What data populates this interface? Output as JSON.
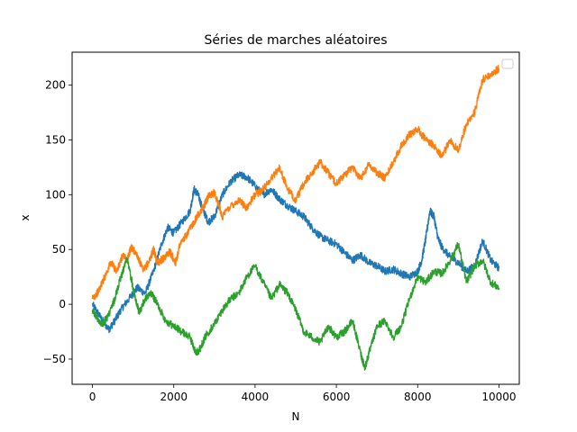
{
  "chart_data": {
    "type": "line",
    "title": "Séries de marches aléatoires",
    "xlabel": "N",
    "ylabel": "x",
    "xlim": [
      -500,
      10500
    ],
    "ylim": [
      -73,
      230
    ],
    "x_ticks": [
      0,
      2000,
      4000,
      6000,
      8000,
      10000
    ],
    "x_tick_labels": [
      "0",
      "2000",
      "4000",
      "6000",
      "8000",
      "10000"
    ],
    "y_ticks": [
      -50,
      0,
      50,
      100,
      150,
      200
    ],
    "y_tick_labels": [
      "−50",
      "0",
      "50",
      "100",
      "150",
      "200"
    ],
    "grid": false,
    "legend": {
      "placement": "top-right",
      "entries": []
    },
    "series": [
      {
        "color": "#1f77b4",
        "x": [
          0,
          200,
          400,
          550,
          700,
          900,
          1100,
          1300,
          1500,
          1700,
          1850,
          2000,
          2200,
          2400,
          2500,
          2600,
          2700,
          2850,
          3000,
          3200,
          3400,
          3600,
          3800,
          4000,
          4200,
          4400,
          4600,
          4800,
          5000,
          5200,
          5400,
          5600,
          5800,
          6000,
          6200,
          6400,
          6600,
          6800,
          7000,
          7200,
          7400,
          7600,
          7800,
          8000,
          8100,
          8200,
          8300,
          8400,
          8500,
          8600,
          8800,
          9000,
          9200,
          9400,
          9600,
          9800,
          10000
        ],
        "y": [
          0,
          -12,
          -23,
          -15,
          -5,
          5,
          15,
          10,
          30,
          55,
          70,
          65,
          75,
          85,
          105,
          100,
          88,
          75,
          80,
          100,
          112,
          118,
          116,
          108,
          100,
          105,
          96,
          90,
          85,
          80,
          70,
          62,
          58,
          55,
          47,
          40,
          45,
          38,
          35,
          30,
          32,
          28,
          25,
          30,
          40,
          60,
          85,
          80,
          60,
          52,
          43,
          38,
          30,
          35,
          58,
          40,
          33
        ]
      },
      {
        "color": "#ff7f0e",
        "x": [
          0,
          150,
          300,
          450,
          600,
          750,
          850,
          950,
          1100,
          1250,
          1400,
          1500,
          1600,
          1750,
          1900,
          2050,
          2150,
          2300,
          2450,
          2600,
          2750,
          2850,
          3000,
          3200,
          3400,
          3600,
          3800,
          4000,
          4200,
          4400,
          4600,
          4800,
          5000,
          5200,
          5400,
          5600,
          5800,
          6000,
          6200,
          6400,
          6600,
          6800,
          7000,
          7200,
          7400,
          7600,
          7800,
          8000,
          8200,
          8400,
          8600,
          8800,
          9000,
          9200,
          9400,
          9600,
          9800,
          10000
        ],
        "y": [
          5,
          12,
          25,
          38,
          30,
          45,
          40,
          52,
          45,
          30,
          40,
          50,
          38,
          42,
          48,
          38,
          55,
          62,
          72,
          82,
          90,
          98,
          102,
          80,
          90,
          95,
          88,
          100,
          105,
          115,
          125,
          105,
          95,
          110,
          120,
          130,
          120,
          110,
          118,
          125,
          115,
          128,
          120,
          115,
          130,
          145,
          155,
          160,
          150,
          145,
          135,
          150,
          140,
          165,
          175,
          205,
          210,
          215
        ]
      },
      {
        "color": "#2ca02c",
        "x": [
          0,
          100,
          250,
          400,
          550,
          700,
          850,
          1000,
          1150,
          1300,
          1450,
          1600,
          1800,
          2000,
          2200,
          2400,
          2550,
          2650,
          2800,
          3000,
          3200,
          3400,
          3600,
          3800,
          4000,
          4200,
          4400,
          4600,
          4800,
          5000,
          5200,
          5400,
          5600,
          5800,
          6000,
          6200,
          6400,
          6600,
          6700,
          6800,
          7000,
          7200,
          7400,
          7600,
          7800,
          8000,
          8200,
          8400,
          8600,
          8800,
          9000,
          9200,
          9400,
          9600,
          9800,
          10000
        ],
        "y": [
          -5,
          -12,
          -18,
          -10,
          5,
          25,
          42,
          15,
          -8,
          5,
          10,
          0,
          -15,
          -20,
          -25,
          -30,
          -45,
          -40,
          -28,
          -18,
          -5,
          5,
          10,
          25,
          35,
          20,
          5,
          18,
          10,
          -5,
          -25,
          -30,
          -35,
          -20,
          -30,
          -25,
          -15,
          -45,
          -58,
          -45,
          -20,
          -15,
          -30,
          -20,
          5,
          25,
          20,
          30,
          28,
          40,
          55,
          20,
          35,
          40,
          20,
          15
        ]
      }
    ]
  }
}
